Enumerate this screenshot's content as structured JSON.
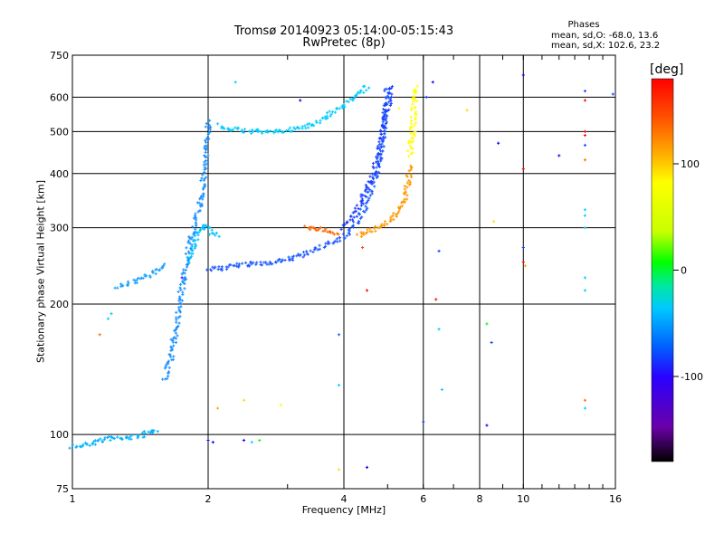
{
  "title_line1": "Tromsø 20140923 05:14:00-05:15:43",
  "title_line2": "RwPretec (8p)",
  "phases_info": {
    "heading": "Phases",
    "o_mode": "mean, sd,O: -68.0, 13.6",
    "x_mode": "mean, sd,X: 102.6, 23.2"
  },
  "colorbar": {
    "unit": "[deg]",
    "range": [
      -180,
      180
    ],
    "tick_labels": [
      "100",
      "0",
      "-100"
    ],
    "tick_values": [
      100,
      0,
      -100
    ],
    "colors": [
      "#000000",
      "#6a00a8",
      "#2a00ff",
      "#0060ff",
      "#00c8ff",
      "#00e8a0",
      "#00ff00",
      "#c8ff00",
      "#ffff00",
      "#ffb000",
      "#ff5000",
      "#ff0000"
    ]
  },
  "chart_data": {
    "type": "scatter",
    "xlabel": "Frequency [MHz]",
    "ylabel": "Stationary phase Virtual Height [km]",
    "x_scale": "log",
    "y_scale": "log",
    "xlim": [
      1,
      16
    ],
    "ylim": [
      75,
      750
    ],
    "x_ticks": [
      1,
      2,
      4,
      6,
      8,
      10,
      16
    ],
    "x_tick_labels": [
      "1",
      "2",
      "4",
      "6",
      "8",
      "10",
      "16"
    ],
    "y_ticks": [
      75,
      100,
      200,
      300,
      400,
      500,
      600,
      750
    ],
    "y_tick_labels": [
      "75",
      "100",
      "200",
      "300",
      "400",
      "500",
      "600",
      "750"
    ],
    "grid": true,
    "traces": [
      {
        "name": "",
        "phase_deg": -80,
        "color": "#00b4ff",
        "points": [
          [
            1.0,
            94
          ],
          [
            1.04,
            94
          ],
          [
            1.08,
            95
          ],
          [
            1.12,
            96
          ],
          [
            1.2,
            98
          ],
          [
            1.3,
            98
          ],
          [
            1.4,
            99
          ],
          [
            1.48,
            101
          ],
          [
            1.55,
            103
          ]
        ]
      },
      {
        "name": "",
        "phase_deg": -85,
        "color": "#1aa0ff",
        "points": [
          [
            1.26,
            220
          ],
          [
            1.32,
            222
          ],
          [
            1.38,
            227
          ],
          [
            1.44,
            231
          ],
          [
            1.5,
            236
          ],
          [
            1.56,
            240
          ],
          [
            1.62,
            247
          ]
        ]
      },
      {
        "name": "",
        "phase_deg": -90,
        "color": "#1890ff",
        "points": [
          [
            1.6,
            134
          ],
          [
            1.63,
            142
          ],
          [
            1.66,
            152
          ],
          [
            1.68,
            165
          ],
          [
            1.7,
            180
          ],
          [
            1.72,
            196
          ],
          [
            1.74,
            210
          ],
          [
            1.76,
            225
          ],
          [
            1.78,
            242
          ],
          [
            1.8,
            262
          ],
          [
            1.84,
            285
          ],
          [
            1.88,
            310
          ],
          [
            1.92,
            340
          ],
          [
            1.95,
            380
          ],
          [
            1.97,
            420
          ],
          [
            1.99,
            470
          ],
          [
            2.0,
            530
          ]
        ]
      },
      {
        "name": "",
        "phase_deg": -75,
        "color": "#00c0ff",
        "points": [
          [
            1.8,
            250
          ],
          [
            1.85,
            270
          ],
          [
            1.9,
            290
          ],
          [
            1.95,
            305
          ],
          [
            2.0,
            300
          ],
          [
            2.05,
            290
          ],
          [
            2.1,
            285
          ]
        ]
      },
      {
        "name": "",
        "phase_deg": -100,
        "color": "#1f5cff",
        "points": [
          [
            2.0,
            240
          ],
          [
            2.3,
            245
          ],
          [
            2.6,
            248
          ],
          [
            2.9,
            252
          ],
          [
            3.2,
            258
          ],
          [
            3.5,
            268
          ],
          [
            3.8,
            278
          ],
          [
            4.0,
            286
          ],
          [
            4.2,
            300
          ],
          [
            4.4,
            325
          ],
          [
            4.6,
            365
          ],
          [
            4.75,
            410
          ],
          [
            4.85,
            460
          ],
          [
            4.92,
            520
          ],
          [
            4.97,
            580
          ],
          [
            5.0,
            635
          ]
        ]
      },
      {
        "name": "",
        "phase_deg": -70,
        "color": "#00ccff",
        "points": [
          [
            2.1,
            515
          ],
          [
            2.3,
            505
          ],
          [
            2.5,
            500
          ],
          [
            2.8,
            500
          ],
          [
            3.1,
            505
          ],
          [
            3.4,
            520
          ],
          [
            3.7,
            545
          ],
          [
            4.0,
            575
          ],
          [
            4.2,
            600
          ],
          [
            4.4,
            625
          ],
          [
            4.55,
            640
          ]
        ]
      },
      {
        "name": "",
        "phase_deg": -110,
        "color": "#1a3cff",
        "points": [
          [
            4.0,
            300
          ],
          [
            4.2,
            320
          ],
          [
            4.4,
            350
          ],
          [
            4.6,
            390
          ],
          [
            4.75,
            430
          ],
          [
            4.85,
            480
          ],
          [
            4.95,
            540
          ],
          [
            5.05,
            600
          ],
          [
            5.1,
            640
          ]
        ]
      },
      {
        "name": "",
        "phase_deg": 130,
        "color": "#ff6600",
        "points": [
          [
            3.3,
            300
          ],
          [
            3.5,
            298
          ],
          [
            3.7,
            295
          ],
          [
            3.9,
            292
          ]
        ]
      },
      {
        "name": "",
        "phase_deg": 120,
        "color": "#ff9900",
        "points": [
          [
            4.3,
            288
          ],
          [
            4.6,
            295
          ],
          [
            4.9,
            305
          ],
          [
            5.1,
            315
          ],
          [
            5.3,
            330
          ],
          [
            5.45,
            350
          ],
          [
            5.55,
            380
          ],
          [
            5.6,
            420
          ]
        ]
      },
      {
        "name": "",
        "phase_deg": 95,
        "color": "#ffff00",
        "points": [
          [
            5.6,
            440
          ],
          [
            5.65,
            480
          ],
          [
            5.7,
            520
          ],
          [
            5.72,
            560
          ],
          [
            5.74,
            600
          ],
          [
            5.76,
            640
          ]
        ]
      }
    ],
    "scattered_points": [
      [
        1.15,
        170,
        -140,
        "#ff6600"
      ],
      [
        1.2,
        185,
        -95,
        "#00c8ff"
      ],
      [
        1.22,
        190,
        -95,
        "#00c8ff"
      ],
      [
        1.75,
        230,
        -140,
        "#2000ff"
      ],
      [
        2.0,
        97,
        -120,
        "#0000ff"
      ],
      [
        2.05,
        96,
        -120,
        "#0000ff"
      ],
      [
        2.4,
        97,
        -130,
        "#0000ff"
      ],
      [
        2.5,
        96,
        -80,
        "#00c8ff"
      ],
      [
        2.6,
        97,
        30,
        "#00ff00"
      ],
      [
        2.1,
        115,
        100,
        "#ffaa00"
      ],
      [
        2.4,
        120,
        100,
        "#ffdd00"
      ],
      [
        2.9,
        117,
        110,
        "#ffff00"
      ],
      [
        2.3,
        650,
        -80,
        "#00c8ff"
      ],
      [
        3.2,
        590,
        -100,
        "#0000ff"
      ],
      [
        3.9,
        170,
        -100,
        "#1f5cff"
      ],
      [
        3.9,
        130,
        -70,
        "#00c8ff"
      ],
      [
        3.9,
        83,
        120,
        "#ffdd00"
      ],
      [
        4.5,
        84,
        -80,
        "#0000ff"
      ],
      [
        4.4,
        270,
        150,
        "#ff4400"
      ],
      [
        4.5,
        215,
        150,
        "#ff0000"
      ],
      [
        5.3,
        565,
        80,
        "#ffff00"
      ],
      [
        5.6,
        475,
        80,
        "#ffff00"
      ],
      [
        6.0,
        107,
        -110,
        "#1a3cff"
      ],
      [
        6.1,
        600,
        -100,
        "#1a3cff"
      ],
      [
        6.3,
        650,
        -110,
        "#0000ff"
      ],
      [
        6.4,
        205,
        150,
        "#ff0000"
      ],
      [
        6.5,
        175,
        -90,
        "#00c8ff"
      ],
      [
        6.5,
        265,
        -100,
        "#1a3cff"
      ],
      [
        6.6,
        127,
        -80,
        "#00c8ff"
      ],
      [
        7.5,
        560,
        110,
        "#ffdd00"
      ],
      [
        8.3,
        180,
        30,
        "#00ff00"
      ],
      [
        8.5,
        163,
        -110,
        "#1a3cff"
      ],
      [
        8.6,
        310,
        110,
        "#ffdd00"
      ],
      [
        8.8,
        470,
        -120,
        "#0000ff"
      ],
      [
        8.3,
        105,
        -120,
        "#0000ff"
      ],
      [
        10.0,
        410,
        170,
        "#ff0000"
      ],
      [
        10.0,
        250,
        170,
        "#ff0000"
      ],
      [
        10.1,
        245,
        100,
        "#ffaa00"
      ],
      [
        10.0,
        675,
        -110,
        "#0000ff"
      ],
      [
        10.0,
        270,
        -110,
        "#1a3cff"
      ],
      [
        12.0,
        440,
        -120,
        "#0000ff"
      ],
      [
        13.7,
        620,
        -110,
        "#1a3cff"
      ],
      [
        13.7,
        590,
        170,
        "#ff0000"
      ],
      [
        13.7,
        500,
        170,
        "#ff0000"
      ],
      [
        13.7,
        490,
        170,
        "#ff0000"
      ],
      [
        13.7,
        465,
        -110,
        "#1a3cff"
      ],
      [
        13.7,
        430,
        130,
        "#ff6600"
      ],
      [
        13.7,
        330,
        -90,
        "#00c8ff"
      ],
      [
        13.7,
        320,
        -90,
        "#00c8ff"
      ],
      [
        13.7,
        300,
        -90,
        "#00c8ff"
      ],
      [
        13.7,
        230,
        -95,
        "#00c8ff"
      ],
      [
        13.7,
        215,
        -95,
        "#00c8ff"
      ],
      [
        13.7,
        120,
        130,
        "#ff6600"
      ],
      [
        13.7,
        115,
        -90,
        "#00c8ff"
      ],
      [
        15.8,
        610,
        -110,
        "#1a3cff"
      ]
    ]
  }
}
